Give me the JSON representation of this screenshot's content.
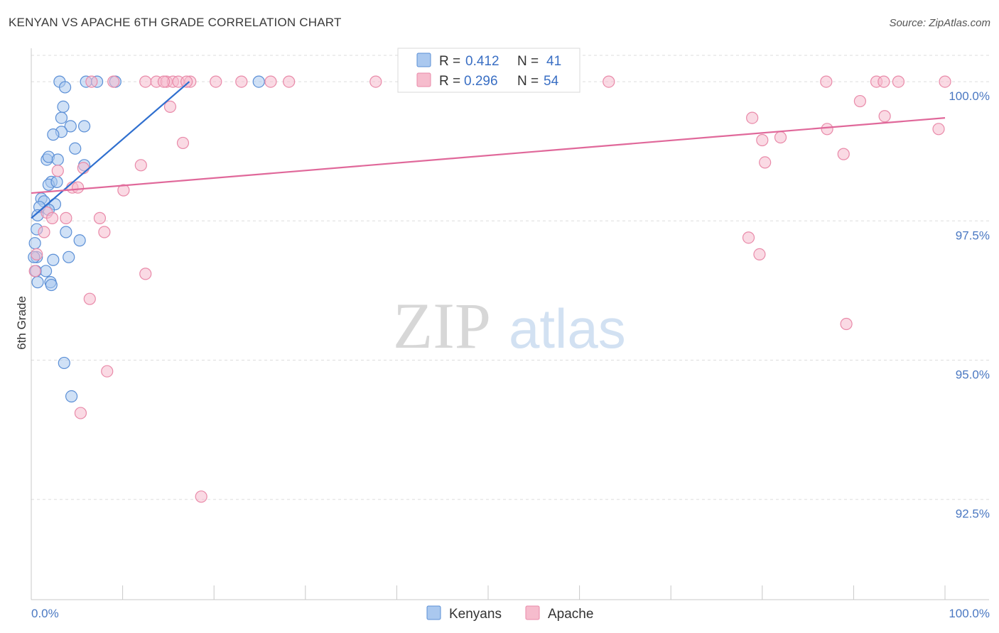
{
  "header": {
    "title": "KENYAN VS APACHE 6TH GRADE CORRELATION CHART",
    "source": "Source: ZipAtlas.com"
  },
  "watermark": {
    "zip": "ZIP",
    "atlas": "atlas"
  },
  "legend_box": {
    "r_label": "R =",
    "n_label": "N =",
    "kenyans": {
      "r": "0.412",
      "n": "41"
    },
    "apache": {
      "r": "0.296",
      "n": "54"
    }
  },
  "colors": {
    "kenyans_fill": "#aac8ef",
    "kenyans_stroke": "#5b8fd6",
    "kenyans_line": "#2f6fcf",
    "apache_fill": "#f6bccd",
    "apache_stroke": "#e98aa9",
    "apache_line": "#e0689a",
    "tick_text": "#4a78c2",
    "grid": "#dddddd"
  },
  "chart_data": {
    "type": "scatter",
    "xlabel": "",
    "ylabel": "6th Grade",
    "xlim": [
      0,
      100
    ],
    "ylim": [
      90.7,
      100.6
    ],
    "x_tick_labels": [
      {
        "value": 0,
        "label": "0.0%"
      },
      {
        "value": 100,
        "label": "100.0%"
      }
    ],
    "x_minor_ticks": [
      10,
      20,
      30,
      40,
      50,
      60,
      70,
      80,
      90
    ],
    "y_ticks": [
      {
        "value": 92.5,
        "label": "92.5%"
      },
      {
        "value": 95.0,
        "label": "95.0%"
      },
      {
        "value": 97.5,
        "label": "97.5%"
      },
      {
        "value": 100.0,
        "label": "100.0%"
      }
    ],
    "grid": "horizontal dashed",
    "legend": [
      "Kenyans",
      "Apache"
    ],
    "series": [
      {
        "name": "Kenyans",
        "trend": {
          "x": [
            0,
            17.3
          ],
          "y": [
            97.55,
            100.0
          ]
        },
        "points": [
          [
            3.1,
            100.0
          ],
          [
            3.7,
            99.9
          ],
          [
            6.0,
            100.0
          ],
          [
            7.2,
            100.0
          ],
          [
            9.2,
            100.0
          ],
          [
            24.9,
            100.0
          ],
          [
            3.5,
            99.55
          ],
          [
            3.3,
            99.35
          ],
          [
            4.3,
            99.2
          ],
          [
            5.8,
            99.2
          ],
          [
            3.3,
            99.1
          ],
          [
            2.4,
            99.05
          ],
          [
            4.8,
            98.8
          ],
          [
            1.7,
            98.6
          ],
          [
            1.9,
            98.65
          ],
          [
            2.9,
            98.6
          ],
          [
            5.8,
            98.5
          ],
          [
            2.2,
            98.2
          ],
          [
            1.9,
            98.15
          ],
          [
            2.8,
            98.2
          ],
          [
            1.1,
            97.9
          ],
          [
            1.4,
            97.85
          ],
          [
            0.9,
            97.75
          ],
          [
            2.6,
            97.8
          ],
          [
            1.9,
            97.7
          ],
          [
            0.7,
            97.6
          ],
          [
            0.6,
            97.35
          ],
          [
            3.8,
            97.3
          ],
          [
            5.3,
            97.15
          ],
          [
            0.4,
            97.1
          ],
          [
            0.6,
            96.85
          ],
          [
            0.3,
            96.85
          ],
          [
            2.4,
            96.8
          ],
          [
            4.1,
            96.85
          ],
          [
            0.5,
            96.6
          ],
          [
            1.6,
            96.6
          ],
          [
            0.7,
            96.4
          ],
          [
            2.1,
            96.4
          ],
          [
            2.2,
            96.35
          ],
          [
            3.6,
            94.95
          ],
          [
            4.4,
            94.35
          ]
        ]
      },
      {
        "name": "Apache",
        "trend": {
          "x": [
            0,
            100
          ],
          "y": [
            98.0,
            99.35
          ]
        },
        "points": [
          [
            6.6,
            100.0
          ],
          [
            9.0,
            100.0
          ],
          [
            12.5,
            100.0
          ],
          [
            13.7,
            100.0
          ],
          [
            14.8,
            100.0
          ],
          [
            15.5,
            100.0
          ],
          [
            16.1,
            100.0
          ],
          [
            17.4,
            100.0
          ],
          [
            14.5,
            100.0
          ],
          [
            17.0,
            100.0
          ],
          [
            20.2,
            100.0
          ],
          [
            23.0,
            100.0
          ],
          [
            26.2,
            100.0
          ],
          [
            28.2,
            100.0
          ],
          [
            37.7,
            100.0
          ],
          [
            63.2,
            100.0
          ],
          [
            87.0,
            100.0
          ],
          [
            92.5,
            100.0
          ],
          [
            93.3,
            100.0
          ],
          [
            94.9,
            100.0
          ],
          [
            100.0,
            100.0
          ],
          [
            15.2,
            99.55
          ],
          [
            90.7,
            99.65
          ],
          [
            78.9,
            99.35
          ],
          [
            93.4,
            99.38
          ],
          [
            87.1,
            99.15
          ],
          [
            99.3,
            99.15
          ],
          [
            82.0,
            99.0
          ],
          [
            80.0,
            98.95
          ],
          [
            16.6,
            98.9
          ],
          [
            88.9,
            98.7
          ],
          [
            12.0,
            98.5
          ],
          [
            80.3,
            98.55
          ],
          [
            5.7,
            98.45
          ],
          [
            2.9,
            98.4
          ],
          [
            4.5,
            98.1
          ],
          [
            5.1,
            98.1
          ],
          [
            10.1,
            98.05
          ],
          [
            1.7,
            97.65
          ],
          [
            2.3,
            97.55
          ],
          [
            3.8,
            97.55
          ],
          [
            7.5,
            97.55
          ],
          [
            1.4,
            97.3
          ],
          [
            8.0,
            97.3
          ],
          [
            78.5,
            97.2
          ],
          [
            0.6,
            96.9
          ],
          [
            79.7,
            96.9
          ],
          [
            12.5,
            96.55
          ],
          [
            0.4,
            96.6
          ],
          [
            6.4,
            96.1
          ],
          [
            89.2,
            95.65
          ],
          [
            8.3,
            94.8
          ],
          [
            5.4,
            94.05
          ],
          [
            18.6,
            92.55
          ]
        ]
      }
    ]
  }
}
